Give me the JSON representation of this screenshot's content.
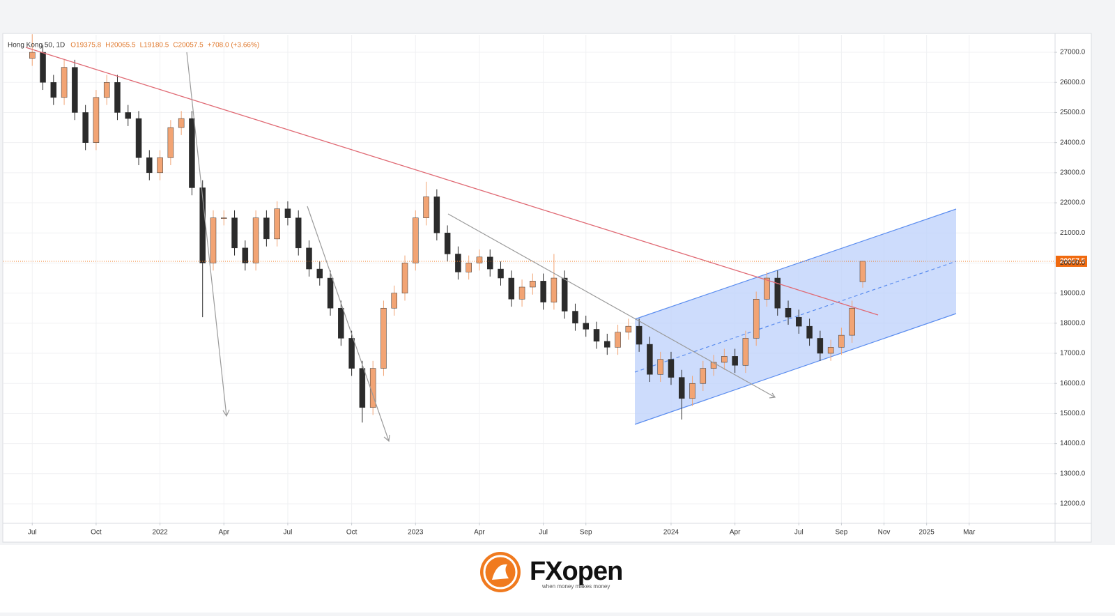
{
  "chart_data": {
    "type": "candlestick",
    "title": "Hong Kong 50, 1D",
    "header": [
      "O19375.8",
      "H20065.5",
      "L19180.5",
      "C20057.5",
      "+708.0 (+3.66%)"
    ],
    "last_price": 20057.5,
    "up_color": "#f2a474",
    "down_color": "#2b2b2b",
    "x": [
      0,
      0.5,
      1,
      1.5,
      2,
      2.5,
      3,
      3.5,
      4,
      4.5,
      5,
      5.5,
      6,
      6.5,
      7,
      7.5,
      8,
      8.5,
      9,
      9.5,
      10,
      10.5,
      11,
      11.5,
      12,
      12.5,
      13,
      13.5,
      14,
      14.5,
      15,
      15.5,
      16,
      16.5,
      17,
      17.5,
      18,
      18.5,
      19,
      19.5,
      20,
      20.5,
      21,
      21.5,
      22,
      22.5,
      23,
      23.5,
      24,
      24.5,
      25,
      25.5,
      26,
      26.5,
      27,
      27.5,
      28,
      28.5,
      29,
      29.5,
      30,
      30.5,
      31,
      31.5,
      32,
      32.5,
      33,
      33.5,
      34,
      34.5,
      35,
      35.5,
      36,
      36.5,
      37,
      37.5,
      38,
      38.5,
      39
    ],
    "open": [
      26800,
      27000,
      26000,
      25500,
      26500,
      25000,
      24000,
      25500,
      26000,
      25000,
      24800,
      23500,
      23000,
      23500,
      24500,
      24800,
      22500,
      20000,
      21500,
      21500,
      20500,
      20000,
      21500,
      20800,
      21800,
      21500,
      20500,
      19800,
      19500,
      18500,
      17500,
      16500,
      15200,
      16500,
      18500,
      19000,
      20000,
      21500,
      22200,
      21000,
      20300,
      19700,
      20000,
      20200,
      19800,
      19500,
      18800,
      19200,
      19400,
      18700,
      19500,
      18400,
      18000,
      17800,
      17400,
      17200,
      17700,
      17900,
      17300,
      16300,
      16800,
      16200,
      15500,
      16000,
      16500,
      16700,
      16900,
      16600,
      17500,
      18800,
      19500,
      18500,
      18200,
      17900,
      17500,
      17000,
      17200,
      17600,
      19375.8
    ],
    "high": [
      27600,
      27250,
      26250,
      26750,
      26750,
      25250,
      25750,
      26250,
      26250,
      25250,
      25050,
      23750,
      23750,
      24750,
      25050,
      25050,
      22750,
      21750,
      21750,
      21750,
      20750,
      21750,
      21750,
      22050,
      22050,
      21750,
      20750,
      20050,
      19750,
      18750,
      17750,
      16750,
      16750,
      18750,
      19250,
      20250,
      21750,
      22700,
      22450,
      21250,
      20550,
      20250,
      20450,
      20450,
      20050,
      19750,
      19450,
      19650,
      19650,
      20300,
      19750,
      18650,
      18250,
      18050,
      17650,
      17950,
      18150,
      18150,
      17550,
      17050,
      17050,
      16450,
      16250,
      16750,
      16950,
      17150,
      17150,
      17750,
      19050,
      19700,
      19750,
      18750,
      18450,
      18150,
      17750,
      17450,
      17850,
      18750,
      20065.5
    ],
    "low": [
      26550,
      25750,
      25250,
      25250,
      24750,
      23750,
      23750,
      25250,
      24750,
      24550,
      23250,
      22750,
      22750,
      23250,
      24250,
      22250,
      18200,
      19750,
      21250,
      20250,
      19750,
      19750,
      20550,
      20550,
      21250,
      20250,
      19550,
      19250,
      18250,
      17250,
      16250,
      14700,
      14950,
      16250,
      18250,
      18750,
      19750,
      21250,
      20750,
      20050,
      19450,
      19450,
      19750,
      19550,
      19250,
      18550,
      18550,
      18950,
      18450,
      18450,
      18150,
      17750,
      17550,
      17150,
      16950,
      16950,
      17450,
      17050,
      16050,
      16050,
      15950,
      14800,
      15250,
      15750,
      16250,
      16450,
      16350,
      16350,
      17250,
      18550,
      18250,
      17950,
      17650,
      17250,
      16750,
      16750,
      16950,
      17350,
      19180.5
    ],
    "close": [
      27000,
      26000,
      25500,
      26500,
      25000,
      24000,
      25500,
      26000,
      25000,
      24800,
      23500,
      23000,
      23500,
      24500,
      24800,
      22500,
      20000,
      21500,
      21500,
      20500,
      20000,
      21500,
      20800,
      21800,
      21500,
      20500,
      19800,
      19500,
      18500,
      17500,
      16500,
      15200,
      16500,
      18500,
      19000,
      20000,
      21500,
      22200,
      21000,
      20300,
      19700,
      20000,
      20200,
      19800,
      19500,
      18800,
      19200,
      19400,
      18700,
      19500,
      18400,
      18000,
      17800,
      17400,
      17200,
      17700,
      17900,
      17300,
      16300,
      16800,
      16200,
      15500,
      16000,
      16500,
      16700,
      16900,
      16600,
      17500,
      18800,
      19500,
      18500,
      18200,
      17900,
      17500,
      17000,
      17200,
      17600,
      18500,
      20057.5
    ],
    "xlim": [
      -1.35,
      48
    ],
    "xticks": [
      {
        "value": 0,
        "label": "Jul"
      },
      {
        "value": 3,
        "label": "Oct"
      },
      {
        "value": 6,
        "label": "2022"
      },
      {
        "value": 9,
        "label": "Apr"
      },
      {
        "value": 12,
        "label": "Jul"
      },
      {
        "value": 15,
        "label": "Oct"
      },
      {
        "value": 18,
        "label": "2023"
      },
      {
        "value": 21,
        "label": "Apr"
      },
      {
        "value": 24,
        "label": "Jul"
      },
      {
        "value": 26,
        "label": "Sep"
      },
      {
        "value": 30,
        "label": "2024"
      },
      {
        "value": 33,
        "label": "Apr"
      },
      {
        "value": 36,
        "label": "Jul"
      },
      {
        "value": 38,
        "label": "Sep"
      },
      {
        "value": 40,
        "label": "Nov"
      },
      {
        "value": 42,
        "label": "2025"
      },
      {
        "value": 44,
        "label": "Mar"
      }
    ],
    "ylim": [
      11375,
      27580
    ],
    "yticks": [
      {
        "value": 12000,
        "label": "12000.0"
      },
      {
        "value": 13000,
        "label": "13000.0"
      },
      {
        "value": 14000,
        "label": "14000.0"
      },
      {
        "value": 15000,
        "label": "15000.0"
      },
      {
        "value": 16000,
        "label": "16000.0"
      },
      {
        "value": 17000,
        "label": "17000.0"
      },
      {
        "value": 18000,
        "label": "18000.0"
      },
      {
        "value": 19000,
        "label": "19000.0"
      },
      {
        "value": 20000,
        "label": "20000.0"
      },
      {
        "value": 21000,
        "label": "21000.0"
      },
      {
        "value": 22000,
        "label": "22000.0"
      },
      {
        "value": 23000,
        "label": "23000.0"
      },
      {
        "value": 24000,
        "label": "24000.0"
      },
      {
        "value": 25000,
        "label": "25000.0"
      },
      {
        "value": 26000,
        "label": "26000.0"
      },
      {
        "value": 27000,
        "label": "27000.0"
      }
    ],
    "grid": true
  },
  "footer": {
    "brand": "FXopen",
    "slogan": "when money makes money"
  }
}
